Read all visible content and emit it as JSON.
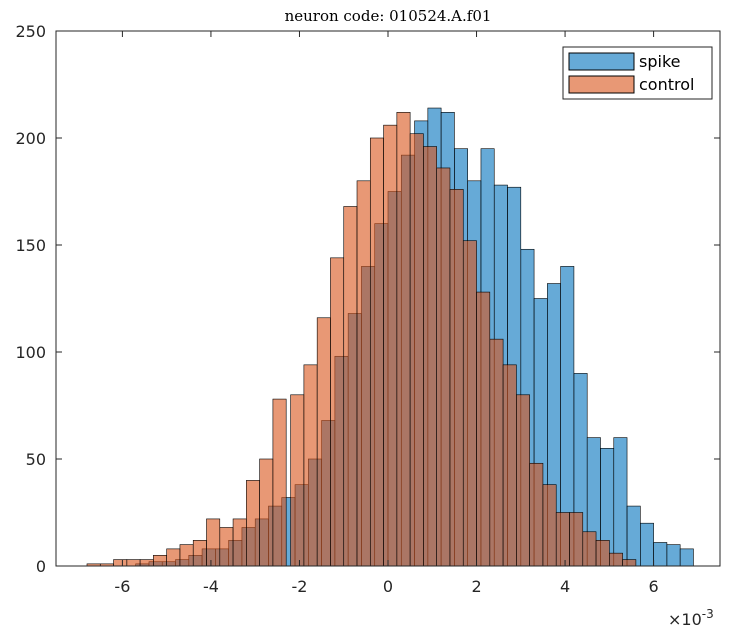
{
  "chart_data": {
    "type": "bar",
    "title": "neuron code: 010524.A.f01",
    "xlabel": "",
    "ylabel": "",
    "x_multiplier": "×10",
    "x_exponent": "-3",
    "xlim": [
      -7.5,
      7.5
    ],
    "ylim": [
      0,
      250
    ],
    "xticks": [
      -6,
      -4,
      -2,
      0,
      2,
      4,
      6
    ],
    "xtick_labels": [
      "-6",
      "-4",
      "-2",
      "0",
      "2",
      "4",
      "6"
    ],
    "yticks": [
      0,
      50,
      100,
      150,
      200,
      250
    ],
    "ytick_labels": [
      "0",
      "50",
      "100",
      "150",
      "200",
      "250"
    ],
    "grid": false,
    "legend_position": "top-right",
    "bin_width": 0.3,
    "series": [
      {
        "name": "spike",
        "color": "#0072BD",
        "bin_starts": [
          -5.7,
          -5.4,
          -5.1,
          -4.8,
          -4.5,
          -4.2,
          -3.9,
          -3.6,
          -3.3,
          -3.0,
          -2.7,
          -2.4,
          -2.1,
          -1.8,
          -1.5,
          -1.2,
          -0.9,
          -0.6,
          -0.3,
          0.0,
          0.3,
          0.6,
          0.9,
          1.2,
          1.5,
          1.8,
          2.1,
          2.4,
          2.7,
          3.0,
          3.3,
          3.6,
          3.9,
          4.2,
          4.5,
          4.8,
          5.1,
          5.4,
          5.7,
          6.0,
          6.3,
          6.6
        ],
        "values": [
          1,
          2,
          2,
          3,
          5,
          8,
          8,
          12,
          18,
          22,
          28,
          32,
          38,
          50,
          68,
          98,
          118,
          140,
          160,
          175,
          192,
          208,
          214,
          212,
          195,
          180,
          195,
          178,
          177,
          148,
          125,
          132,
          140,
          90,
          60,
          55,
          60,
          28,
          20,
          11,
          10,
          8
        ]
      },
      {
        "name": "control",
        "color": "#D95319",
        "bin_starts": [
          -7.1,
          -6.8,
          -6.5,
          -6.2,
          -5.9,
          -5.6,
          -5.3,
          -5.0,
          -4.7,
          -4.4,
          -4.1,
          -3.8,
          -3.5,
          -3.2,
          -2.9,
          -2.6,
          -2.2,
          -1.9,
          -1.6,
          -1.3,
          -1.0,
          -0.7,
          -0.4,
          -0.1,
          0.2,
          0.5,
          0.8,
          1.1,
          1.4,
          1.7,
          2.0,
          2.3,
          2.6,
          2.9,
          3.2,
          3.5,
          3.8,
          4.1,
          4.4,
          4.7,
          5.0,
          5.3
        ],
        "values": [
          0,
          1,
          1,
          3,
          3,
          3,
          5,
          8,
          10,
          12,
          22,
          18,
          22,
          40,
          50,
          78,
          80,
          94,
          116,
          144,
          168,
          180,
          200,
          206,
          212,
          202,
          196,
          186,
          176,
          152,
          128,
          106,
          94,
          80,
          48,
          38,
          25,
          25,
          16,
          12,
          6,
          3
        ]
      }
    ]
  }
}
